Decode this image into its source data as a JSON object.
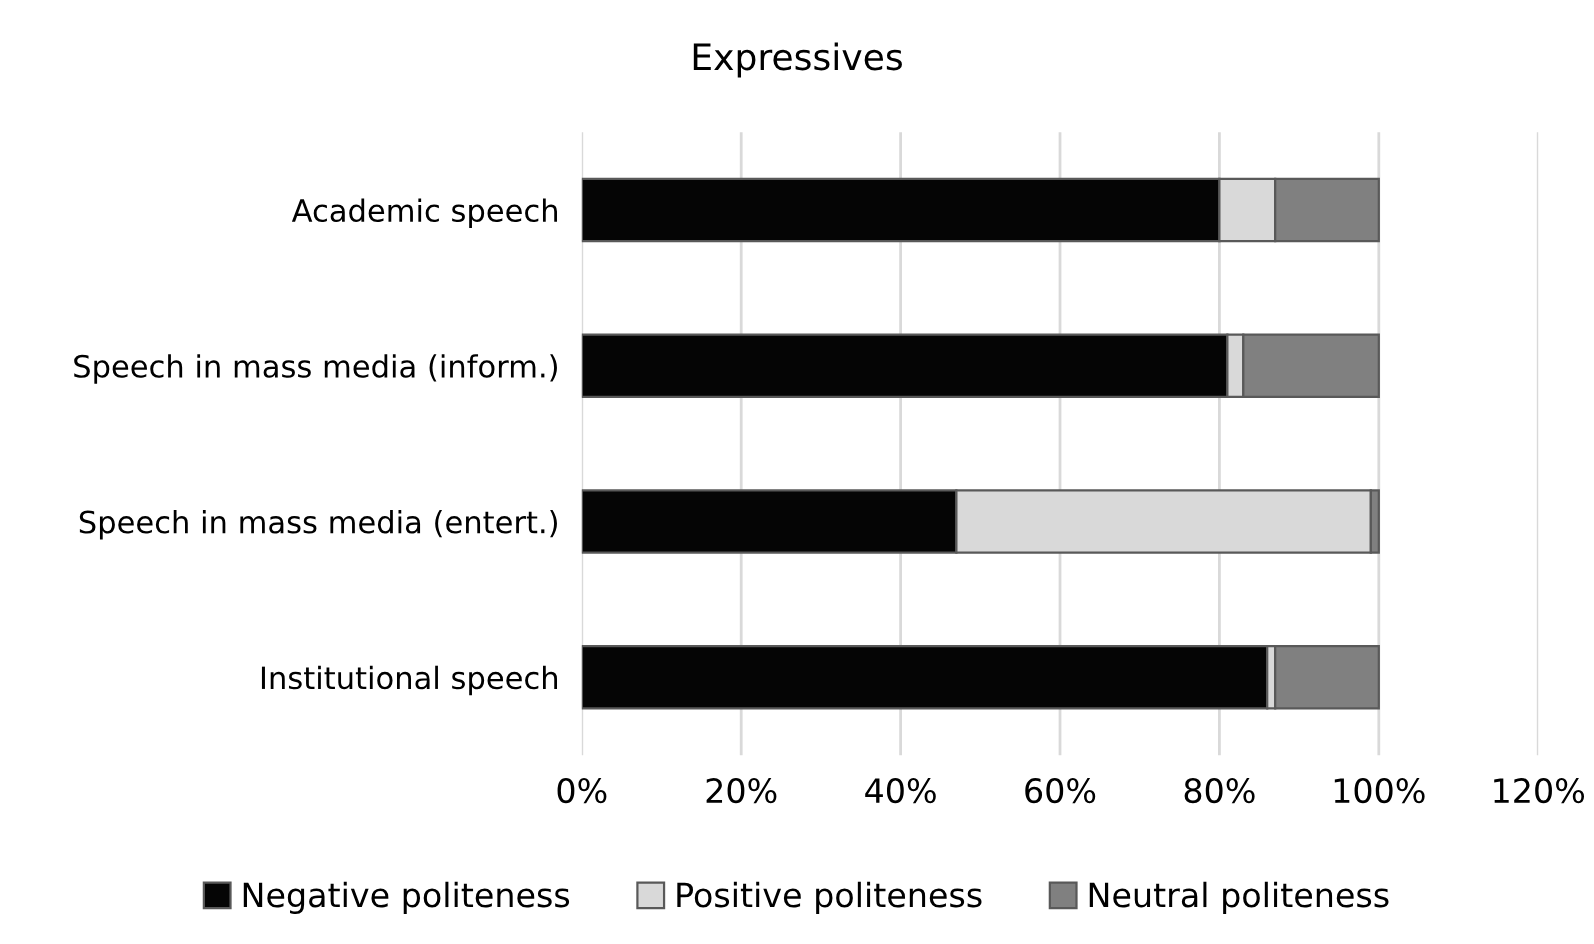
{
  "chart_data": {
    "type": "bar",
    "orientation": "horizontal",
    "stacked": true,
    "title": "Expressives",
    "categories": [
      "Academic speech",
      "Speech in mass media (inform.)",
      "Speech in mass media (entert.)",
      "Institutional speech"
    ],
    "series": [
      {
        "name": "Negative politeness",
        "color": "#050505",
        "values": [
          80,
          81,
          47,
          86
        ]
      },
      {
        "name": "Positive politeness",
        "color": "#d9d9d9",
        "values": [
          7,
          2,
          52,
          1
        ]
      },
      {
        "name": "Neutral politeness",
        "color": "#808080",
        "values": [
          13,
          17,
          1,
          13
        ]
      }
    ],
    "xlim": [
      0,
      120
    ],
    "xticks": [
      {
        "value": 0,
        "label": "0%"
      },
      {
        "value": 20,
        "label": "20%"
      },
      {
        "value": 40,
        "label": "40%"
      },
      {
        "value": 60,
        "label": "60%"
      },
      {
        "value": 80,
        "label": "80%"
      },
      {
        "value": 100,
        "label": "100%"
      },
      {
        "value": 120,
        "label": "120%"
      }
    ],
    "grid": "x",
    "legend": "bottom"
  }
}
